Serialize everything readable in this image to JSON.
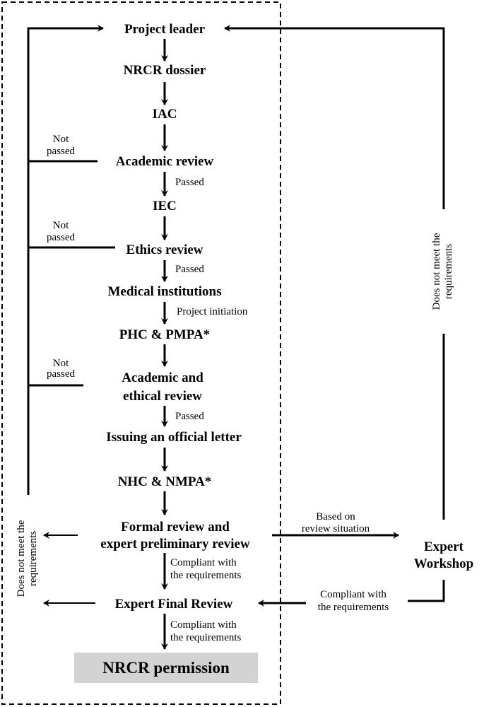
{
  "nodes": {
    "project_leader": "Project leader",
    "nrcr_dossier": "NRCR dossier",
    "iac": "IAC",
    "academic_review": "Academic review",
    "iec": "IEC",
    "ethics_review": "Ethics review",
    "medical_institutions": "Medical institutions",
    "phc_pmpa": "PHC & PMPA*",
    "academic_ethical_1": "Academic and",
    "academic_ethical_2": "ethical review",
    "official_letter": "Issuing an official letter",
    "nhc_nmpa": "NHC & NMPA*",
    "formal_review_1": "Formal review and",
    "formal_review_2": "expert preliminary review",
    "expert_final": "Expert Final Review",
    "nrcr_permission": "NRCR permission",
    "expert_workshop_1": "Expert",
    "expert_workshop_2": "Workshop"
  },
  "labels": {
    "passed": "Passed",
    "not": "Not",
    "passed_lower": "passed",
    "project_initiation": "Project initiation",
    "compliant_1": "Compliant with",
    "compliant_2": "the requirements",
    "does_not_meet_1": "Does not meet the",
    "does_not_meet_2": "requirements",
    "based_on_1": "Based on",
    "based_on_2": "review situation"
  },
  "colors": {
    "permission_box": "#d3d3d3"
  }
}
